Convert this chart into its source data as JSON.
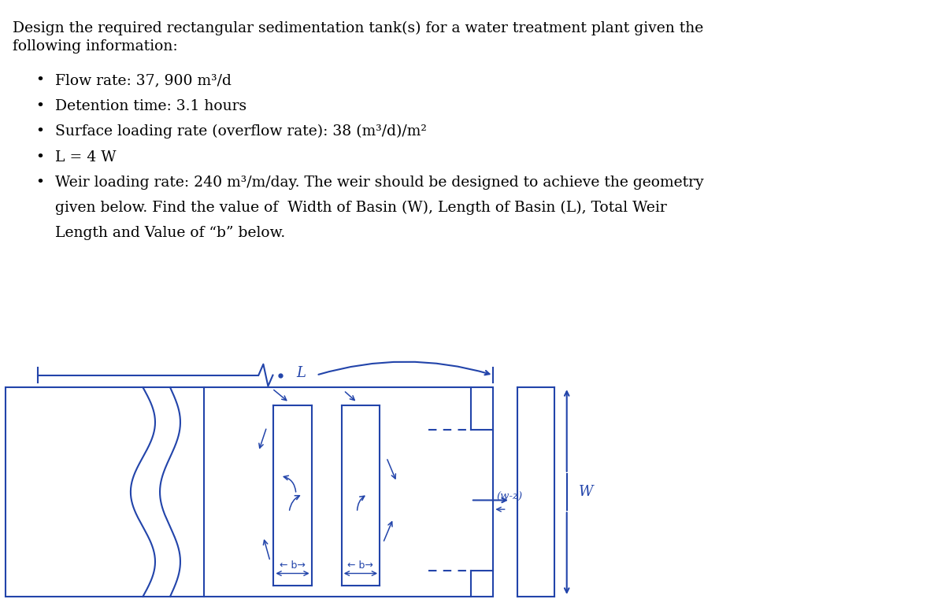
{
  "bg_color": "#ffffff",
  "text_color": "#000000",
  "diagram_color": "#2244aa",
  "title_line1": "Design the required rectangular sedimentation tank(s) for a water treatment plant given the",
  "title_line2": "following information:",
  "bullet1": "Flow rate: 37, 900 m³/d",
  "bullet2": "Detention time: 3.1 hours",
  "bullet3": "Surface loading rate (overflow rate): 38 (m³/d)/m²",
  "bullet4": "L = 4 W",
  "bullet5a": "Weir loading rate: 240 m³/m/day. The weir should be designed to achieve the geometry",
  "bullet5b": "given below. Find the value of  Width of Basin (W), Length of Basin (L), Total Weir",
  "bullet5c": "Length and Value of “b” below.",
  "font_size": 13.5,
  "diagram_lw": 1.5
}
